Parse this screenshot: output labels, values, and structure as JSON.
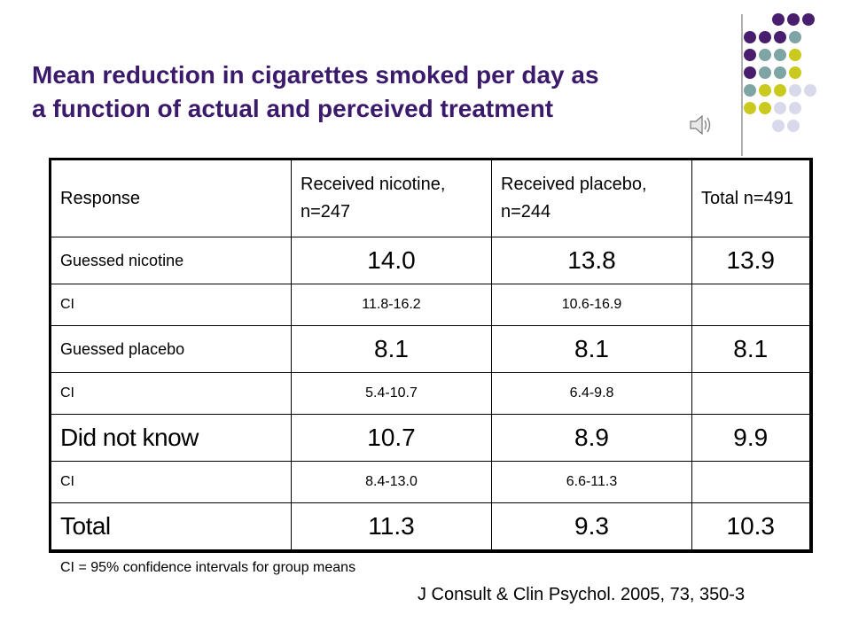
{
  "slide": {
    "title_line1": "Mean reduction in cigarettes smoked per day as",
    "title_line2": "a function of actual and perceived treatment",
    "title_color": "#3b1a6b",
    "dot_colors": {
      "purple": "#4a1e6e",
      "teal": "#7fa4a4",
      "olive": "#c9c91e",
      "lavender": "#d9d9ec"
    },
    "divider_color": "#b0b0b0",
    "speaker_icon": "speaker-icon"
  },
  "table": {
    "headers": [
      "Response",
      "Received nicotine, n=247",
      "Received placebo, n=244",
      "Total n=491"
    ],
    "rows": [
      {
        "label": "Guessed nicotine",
        "nicotine": "14.0",
        "placebo": "13.8",
        "total": "13.9"
      },
      {
        "label": "CI",
        "nicotine": "11.8-16.2",
        "placebo": "10.6-16.9",
        "total": ""
      },
      {
        "label": "Guessed placebo",
        "nicotine": "8.1",
        "placebo": "8.1",
        "total": "8.1"
      },
      {
        "label": "CI",
        "nicotine": "5.4-10.7",
        "placebo": "6.4-9.8",
        "total": ""
      },
      {
        "label": "Did not know",
        "nicotine": "10.7",
        "placebo": "8.9",
        "total": "9.9"
      },
      {
        "label": "CI",
        "nicotine": "8.4-13.0",
        "placebo": "6.6-11.3",
        "total": ""
      },
      {
        "label": "Total",
        "nicotine": "11.3",
        "placebo": "9.3",
        "total": "10.3"
      }
    ]
  },
  "footnote": "CI = 95% confidence intervals for group means",
  "citation": "J Consult & Clin Psychol. 2005, 73, 350-3"
}
